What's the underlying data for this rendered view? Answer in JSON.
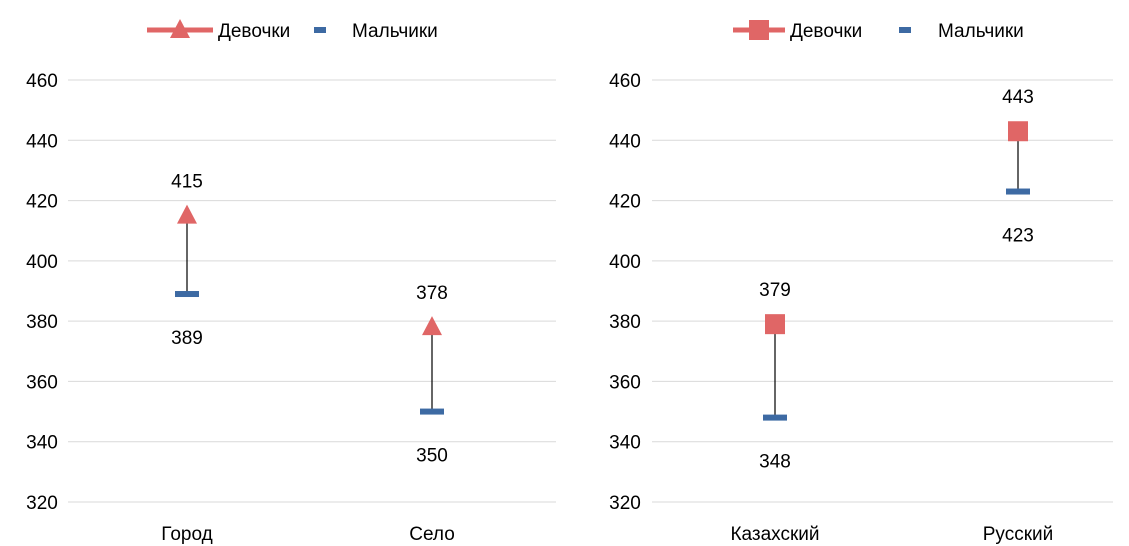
{
  "chart_data": [
    {
      "type": "line",
      "categories": [
        "Город",
        "Село"
      ],
      "ylim": [
        320,
        460
      ],
      "yticks": [
        320,
        340,
        360,
        380,
        400,
        420,
        440,
        460
      ],
      "grid": true,
      "legend_position": "top",
      "series": [
        {
          "name": "Девочки",
          "values": [
            415,
            378
          ],
          "marker": "triangle",
          "color": "#e06666"
        },
        {
          "name": "Мальчики",
          "values": [
            389,
            350
          ],
          "marker": "dash",
          "color": "#3d6aa3"
        }
      ],
      "high_low_lines": true
    },
    {
      "type": "line",
      "categories": [
        "Казахский",
        "Русский"
      ],
      "ylim": [
        320,
        460
      ],
      "yticks": [
        320,
        340,
        360,
        380,
        400,
        420,
        440,
        460
      ],
      "grid": true,
      "legend_position": "top",
      "series": [
        {
          "name": "Девочки",
          "values": [
            379,
            443
          ],
          "marker": "square",
          "color": "#e06666"
        },
        {
          "name": "Мальчики",
          "values": [
            348,
            423
          ],
          "marker": "dash",
          "color": "#3d6aa3"
        }
      ],
      "high_low_lines": true
    }
  ]
}
